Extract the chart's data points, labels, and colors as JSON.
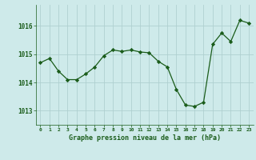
{
  "x": [
    0,
    1,
    2,
    3,
    4,
    5,
    6,
    7,
    8,
    9,
    10,
    11,
    12,
    13,
    14,
    15,
    16,
    17,
    18,
    19,
    20,
    21,
    22,
    23
  ],
  "y": [
    1014.7,
    1014.85,
    1014.4,
    1014.1,
    1014.1,
    1014.3,
    1014.55,
    1014.95,
    1015.15,
    1015.1,
    1015.15,
    1015.08,
    1015.05,
    1014.75,
    1014.55,
    1013.75,
    1013.2,
    1013.15,
    1013.3,
    1015.35,
    1015.75,
    1015.45,
    1016.2,
    1016.1
  ],
  "line_color": "#1a5c1a",
  "marker": "D",
  "marker_size": 2.2,
  "background_color": "#ceeaea",
  "grid_color": "#b0d0d0",
  "xlabel": "Graphe pression niveau de la mer (hPa)",
  "xlabel_color": "#1a5c1a",
  "tick_label_color": "#1a5c1a",
  "ylim": [
    1012.5,
    1016.75
  ],
  "yticks": [
    1013,
    1014,
    1015,
    1016
  ],
  "xlim": [
    -0.5,
    23.5
  ],
  "xticks": [
    0,
    1,
    2,
    3,
    4,
    5,
    6,
    7,
    8,
    9,
    10,
    11,
    12,
    13,
    14,
    15,
    16,
    17,
    18,
    19,
    20,
    21,
    22,
    23
  ]
}
